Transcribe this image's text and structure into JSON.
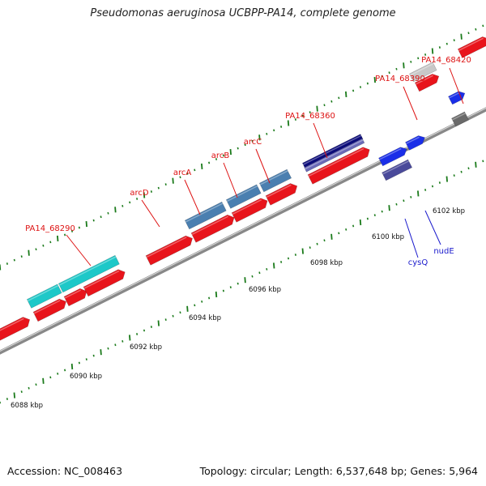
{
  "title": "Pseudomonas aeruginosa UCBPP-PA14, complete genome",
  "footer": {
    "accession": "Accession: NC_008463",
    "meta": "Topology: circular; Length: 6,537,648 bp; Genes: 5,964"
  },
  "colors": {
    "red_gene": "#e8141b",
    "cyan_gene": "#1ec8c8",
    "steelblue_gene": "#4a7fb0",
    "navy_gene": "#0b0b7a",
    "slate_gene": "#6a6ab8",
    "blue_gene": "#1a2ee8",
    "darkslate_gene": "#4a4a9a",
    "lightgray_gene": "#c8c8c8",
    "darkgray_gene": "#6a6a6a",
    "tick": "#1a7a1a",
    "backbone": "#888888",
    "red_label": "#dd1111",
    "blue_label": "#1a1acc"
  },
  "kbp_labels": [
    "6088 kbp",
    "6090 kbp",
    "6092 kbp",
    "6094 kbp",
    "6096 kbp",
    "6098 kbp",
    "6100 kbp",
    "6102 kbp"
  ],
  "gene_labels": [
    {
      "text": "PA14_68290",
      "color": "red"
    },
    {
      "text": "arcD",
      "color": "red"
    },
    {
      "text": "arcA",
      "color": "red"
    },
    {
      "text": "arcB",
      "color": "red"
    },
    {
      "text": "arcC",
      "color": "red"
    },
    {
      "text": "PA14_68360",
      "color": "red"
    },
    {
      "text": "PA14_68390",
      "color": "red"
    },
    {
      "text": "PA14_68420",
      "color": "red"
    },
    {
      "text": "cysQ",
      "color": "blue"
    },
    {
      "text": "nudE",
      "color": "blue"
    }
  ]
}
